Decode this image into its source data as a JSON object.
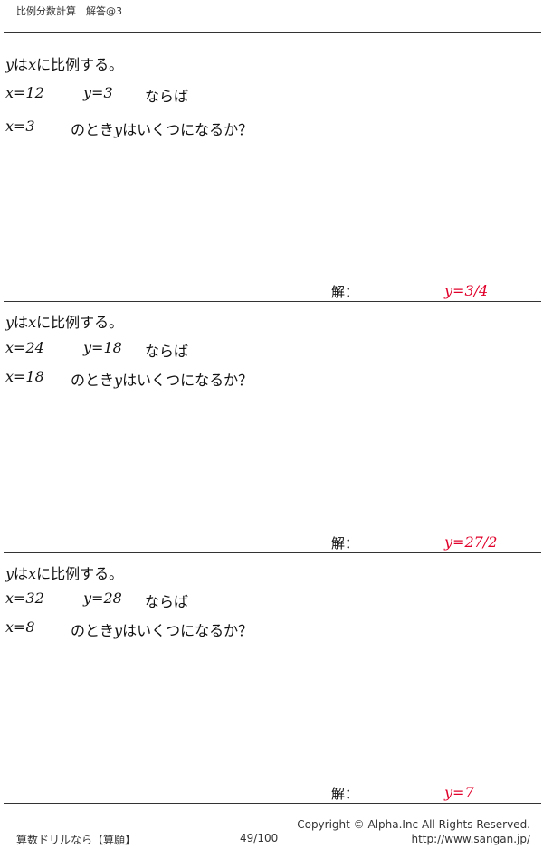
{
  "header": {
    "title": "比例分数計算　解答@3"
  },
  "problems": [
    {
      "stmt_y": "y",
      "stmt_mid": "は",
      "stmt_x": "x",
      "stmt_tail": "に比例する。",
      "given_x": "x=12",
      "given_y": "y=3",
      "given_tail": "ならば",
      "ask_x": "x=3",
      "ask_mid": "のとき",
      "ask_y": "y",
      "ask_tail": "はいくつになるか？",
      "answer_label": "解：",
      "answer": "y=3/4"
    },
    {
      "stmt_y": "y",
      "stmt_mid": "は",
      "stmt_x": "x",
      "stmt_tail": "に比例する。",
      "given_x": "x=24",
      "given_y": "y=18",
      "given_tail": "ならば",
      "ask_x": "x=18",
      "ask_mid": "のとき",
      "ask_y": "y",
      "ask_tail": "はいくつになるか？",
      "answer_label": "解：",
      "answer": "y=27/2"
    },
    {
      "stmt_y": "y",
      "stmt_mid": "は",
      "stmt_x": "x",
      "stmt_tail": "に比例する。",
      "given_x": "x=32",
      "given_y": "y=28",
      "given_tail": "ならば",
      "ask_x": "x=8",
      "ask_mid": "のとき",
      "ask_y": "y",
      "ask_tail": "はいくつになるか？",
      "answer_label": "解：",
      "answer": "y=7"
    }
  ],
  "footer": {
    "left": "算数ドリルなら【算願】",
    "page": "49/100",
    "copyright": "Copyright ©  Alpha.Inc All Rights Reserved.",
    "url": "http://www.sangan.jp/"
  },
  "colors": {
    "answer": "#e0002a"
  }
}
